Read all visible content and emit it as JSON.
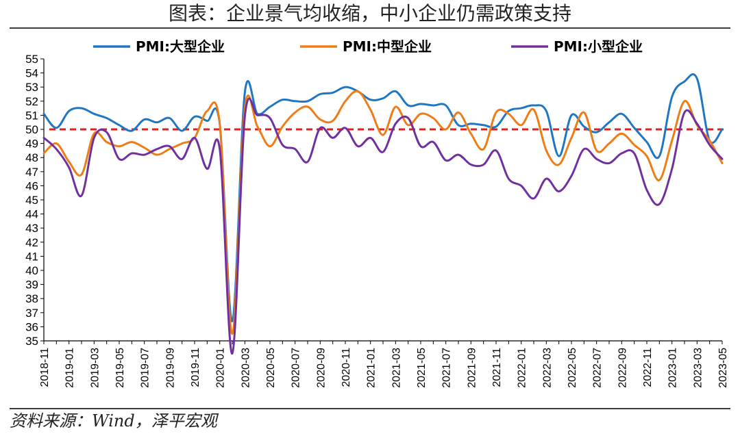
{
  "title": "图表：企业景气均收缩，中小企业仍需政策支持",
  "source": "资料来源：Wind，泽平宏观",
  "chart_data": {
    "type": "line",
    "title": "图表：企业景气均收缩，中小企业仍需政策支持",
    "xlabel": "",
    "ylabel": "",
    "ylim": [
      35,
      55
    ],
    "yticks": [
      35,
      36,
      37,
      38,
      39,
      40,
      41,
      42,
      43,
      44,
      45,
      46,
      47,
      48,
      49,
      50,
      51,
      52,
      53,
      54,
      55
    ],
    "legend_position": "top",
    "grid": false,
    "reference_line": {
      "value": 50,
      "color": "#e0201c",
      "style": "dashed"
    },
    "x": [
      "2018-11",
      "2018-12",
      "2019-01",
      "2019-02",
      "2019-03",
      "2019-04",
      "2019-05",
      "2019-06",
      "2019-07",
      "2019-08",
      "2019-09",
      "2019-10",
      "2019-11",
      "2019-12",
      "2020-01",
      "2020-02",
      "2020-03",
      "2020-04",
      "2020-05",
      "2020-06",
      "2020-07",
      "2020-08",
      "2020-09",
      "2020-10",
      "2020-11",
      "2020-12",
      "2021-01",
      "2021-02",
      "2021-03",
      "2021-04",
      "2021-05",
      "2021-06",
      "2021-07",
      "2021-08",
      "2021-09",
      "2021-10",
      "2021-11",
      "2021-12",
      "2022-01",
      "2022-02",
      "2022-03",
      "2022-04",
      "2022-05",
      "2022-06",
      "2022-07",
      "2022-08",
      "2022-09",
      "2022-10",
      "2022-11",
      "2022-12",
      "2023-01",
      "2023-02",
      "2023-03",
      "2023-04",
      "2023-05"
    ],
    "xtick_labels": [
      "2018-11",
      "2019-01",
      "2019-03",
      "2019-05",
      "2019-07",
      "2019-09",
      "2019-11",
      "2020-01",
      "2020-03",
      "2020-05",
      "2020-07",
      "2020-09",
      "2020-11",
      "2021-01",
      "2021-03",
      "2021-05",
      "2021-07",
      "2021-09",
      "2021-11",
      "2022-01",
      "2022-03",
      "2022-05",
      "2022-07",
      "2022-09",
      "2022-11",
      "2023-01",
      "2023-03",
      "2023-05"
    ],
    "series": [
      {
        "name": "PMI:大型企业",
        "color": "#1f77c4",
        "values": [
          51.1,
          50.1,
          51.3,
          51.5,
          51.1,
          50.8,
          50.3,
          49.9,
          50.7,
          50.5,
          50.8,
          49.9,
          50.9,
          50.6,
          50.4,
          36.4,
          52.6,
          51.1,
          51.6,
          52.1,
          52.0,
          52.0,
          52.5,
          52.6,
          53.0,
          52.7,
          52.1,
          52.2,
          52.7,
          51.7,
          51.8,
          51.7,
          51.7,
          50.3,
          50.4,
          50.3,
          50.2,
          51.3,
          51.5,
          51.7,
          51.3,
          48.1,
          51.0,
          50.2,
          49.8,
          50.5,
          51.1,
          50.1,
          49.1,
          48.1,
          52.3,
          53.4,
          53.6,
          49.2,
          50.0
        ]
      },
      {
        "name": "PMI:中型企业",
        "color": "#ef7d16",
        "values": [
          48.3,
          49.0,
          47.7,
          46.8,
          49.7,
          49.1,
          48.8,
          49.1,
          48.7,
          48.2,
          48.6,
          49.0,
          49.4,
          51.3,
          50.4,
          35.5,
          51.5,
          50.2,
          48.8,
          50.2,
          51.2,
          51.6,
          50.7,
          50.6,
          52.0,
          52.7,
          51.4,
          49.6,
          51.6,
          50.3,
          51.1,
          50.8,
          50.0,
          51.2,
          49.7,
          48.6,
          51.2,
          51.1,
          50.3,
          51.4,
          48.5,
          47.5,
          49.4,
          51.2,
          48.5,
          49.0,
          49.7,
          48.9,
          48.1,
          46.4,
          49.2,
          52.0,
          50.3,
          49.2,
          47.6
        ]
      },
      {
        "name": "PMI:小型企业",
        "color": "#7030a0",
        "values": [
          49.4,
          48.6,
          47.3,
          45.3,
          49.4,
          49.8,
          47.9,
          48.3,
          48.2,
          48.6,
          48.8,
          47.9,
          49.4,
          47.2,
          48.6,
          34.1,
          50.9,
          51.0,
          50.8,
          48.9,
          48.6,
          47.7,
          50.1,
          49.4,
          50.1,
          48.8,
          49.4,
          48.4,
          50.4,
          50.8,
          48.8,
          49.1,
          47.8,
          48.2,
          47.5,
          47.5,
          48.5,
          46.5,
          46.0,
          45.1,
          46.5,
          45.6,
          46.7,
          48.6,
          47.9,
          47.6,
          48.3,
          48.3,
          45.7,
          44.7,
          47.2,
          51.2,
          50.4,
          48.9,
          47.9
        ]
      }
    ]
  }
}
